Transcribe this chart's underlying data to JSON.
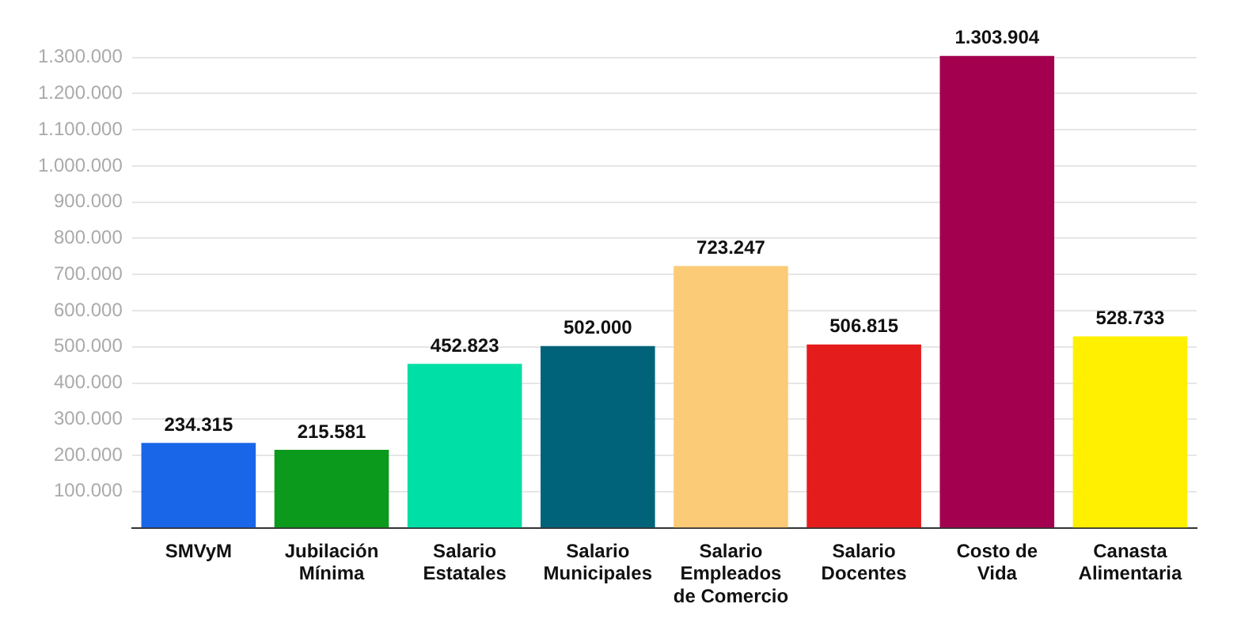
{
  "chart_data": {
    "type": "bar",
    "categories": [
      "SMVyM",
      "Jubilación Mínima",
      "Salario Estatales",
      "Salario Municipales",
      "Salario Empleados de Comercio",
      "Salario Docentes",
      "Costo de Vida",
      "Canasta Alimentaria"
    ],
    "values": [
      234315,
      215581,
      452823,
      502000,
      723247,
      506815,
      1303904,
      528733
    ],
    "colors": [
      "#1a66e8",
      "#0c9a1d",
      "#00dfa5",
      "#00637a",
      "#fccb78",
      "#e51c1c",
      "#a3004f",
      "#ffef00"
    ],
    "value_labels": [
      "234.315",
      "215.581",
      "452.823",
      "502.000",
      "723.247",
      "506.815",
      "1.303.904",
      "528.733"
    ],
    "ylim": [
      0,
      1310000
    ],
    "yticks": [
      {
        "value": 100000,
        "label": "100.000"
      },
      {
        "value": 200000,
        "label": "200.000"
      },
      {
        "value": 300000,
        "label": "300.000"
      },
      {
        "value": 400000,
        "label": "400.000"
      },
      {
        "value": 500000,
        "label": "500.000"
      },
      {
        "value": 600000,
        "label": "600.000"
      },
      {
        "value": 700000,
        "label": "700.000"
      },
      {
        "value": 800000,
        "label": "800.000"
      },
      {
        "value": 900000,
        "label": "900.000"
      },
      {
        "value": 1000000,
        "label": "1.000.000"
      },
      {
        "value": 1100000,
        "label": "1.100.000"
      },
      {
        "value": 1200000,
        "label": "1.200.000"
      },
      {
        "value": 1300000,
        "label": "1.300.000"
      }
    ],
    "grid": "y"
  }
}
